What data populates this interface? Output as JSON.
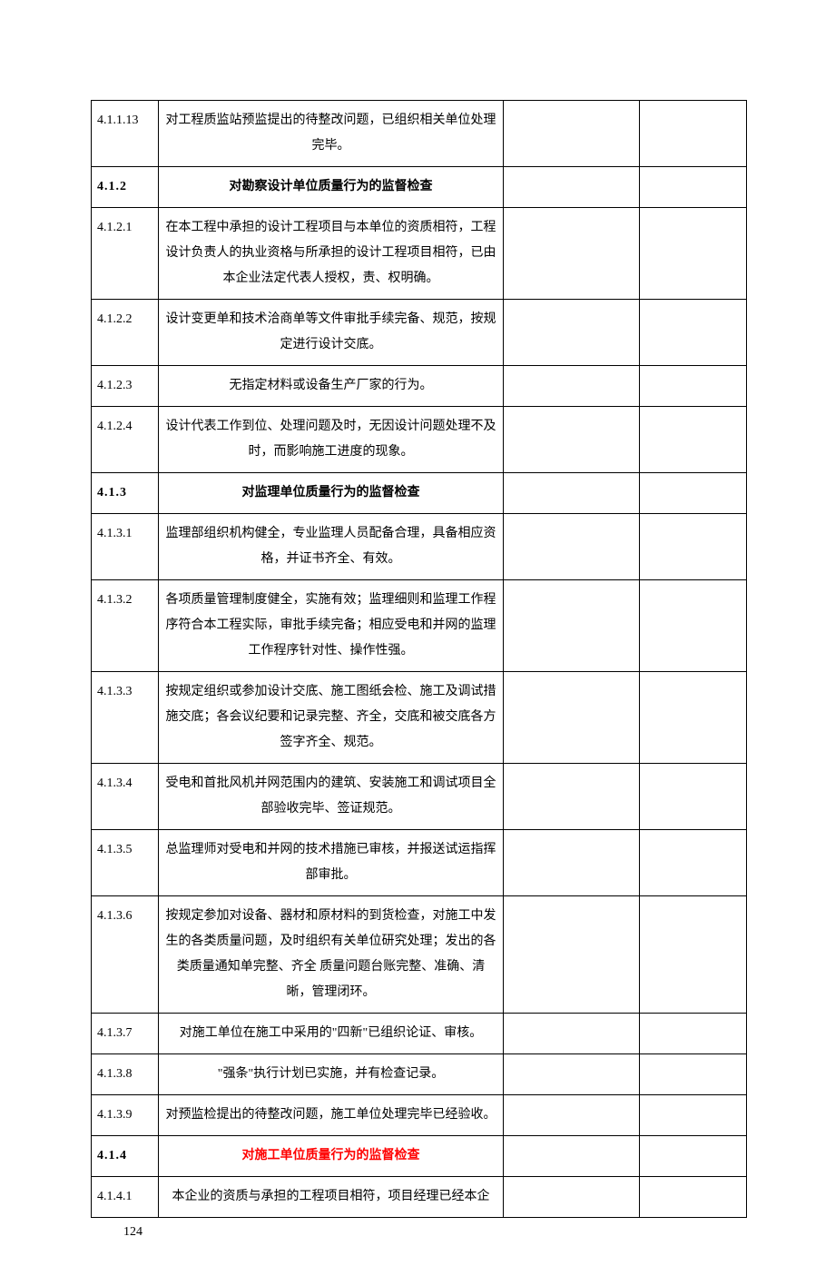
{
  "page_number": "124",
  "table": {
    "columns": {
      "number_width": 74,
      "content_width": 380,
      "empty1_width": 150,
      "empty2_width": 118
    },
    "rows": [
      {
        "number": "4.1.1.13",
        "content": "对工程质监站预监提出的待整改问题，已组织相关单位处理完毕。",
        "is_header": false,
        "is_red": false
      },
      {
        "number": "4.1.2",
        "content": "对勘察设计单位质量行为的监督检查",
        "is_header": true,
        "is_red": false
      },
      {
        "number": "4.1.2.1",
        "content": "在本工程中承担的设计工程项目与本单位的资质相符，工程设计负责人的执业资格与所承担的设计工程项目相符，已由本企业法定代表人授权，责、权明确。",
        "is_header": false,
        "is_red": false
      },
      {
        "number": "4.1.2.2",
        "content": "设计变更单和技术洽商单等文件审批手续完备、规范，按规定进行设计交底。",
        "is_header": false,
        "is_red": false
      },
      {
        "number": "4.1.2.3",
        "content": "无指定材料或设备生产厂家的行为。",
        "is_header": false,
        "is_red": false
      },
      {
        "number": "4.1.2.4",
        "content": "设计代表工作到位、处理问题及时，无因设计问题处理不及时，而影响施工进度的现象。",
        "is_header": false,
        "is_red": false
      },
      {
        "number": "4.1.3",
        "content": "对监理单位质量行为的监督检查",
        "is_header": true,
        "is_red": false
      },
      {
        "number": "4.1.3.1",
        "content": "监理部组织机构健全，专业监理人员配备合理，具备相应资格，并证书齐全、有效。",
        "is_header": false,
        "is_red": false
      },
      {
        "number": "4.1.3.2",
        "content": "各项质量管理制度健全，实施有效；监理细则和监理工作程序符合本工程实际，审批手续完备；相应受电和并网的监理工作程序针对性、操作性强。",
        "is_header": false,
        "is_red": false
      },
      {
        "number": "4.1.3.3",
        "content": "按规定组织或参加设计交底、施工图纸会检、施工及调试措施交底；各会议纪要和记录完整、齐全，交底和被交底各方签字齐全、规范。",
        "is_header": false,
        "is_red": false
      },
      {
        "number": "4.1.3.4",
        "content": "受电和首批风机并网范围内的建筑、安装施工和调试项目全部验收完毕、签证规范。",
        "is_header": false,
        "is_red": false
      },
      {
        "number": "4.1.3.5",
        "content": "总监理师对受电和并网的技术措施已审核，并报送试运指挥部审批。",
        "is_header": false,
        "is_red": false
      },
      {
        "number": "4.1.3.6",
        "content": "按规定参加对设备、器材和原材料的到货检查，对施工中发生的各类质量问题，及时组织有关单位研究处理；发出的各类质量通知单完整、齐全 质量问题台账完整、准确、清晰，管理闭环。",
        "is_header": false,
        "is_red": false
      },
      {
        "number": "4.1.3.7",
        "content": "对施工单位在施工中采用的\"四新\"已组织论证、审核。",
        "is_header": false,
        "is_red": false
      },
      {
        "number": "4.1.3.8",
        "content": "\"强条\"执行计划已实施，并有检查记录。",
        "is_header": false,
        "is_red": false
      },
      {
        "number": "4.1.3.9",
        "content": "对预监检提出的待整改问题，施工单位处理完毕已经验收。",
        "is_header": false,
        "is_red": false
      },
      {
        "number": "4.1.4",
        "content": "对施工单位质量行为的监督检查",
        "is_header": true,
        "is_red": true
      },
      {
        "number": "4.1.4.1",
        "content": "本企业的资质与承担的工程项目相符，项目经理已经本企",
        "is_header": false,
        "is_red": false
      }
    ]
  }
}
